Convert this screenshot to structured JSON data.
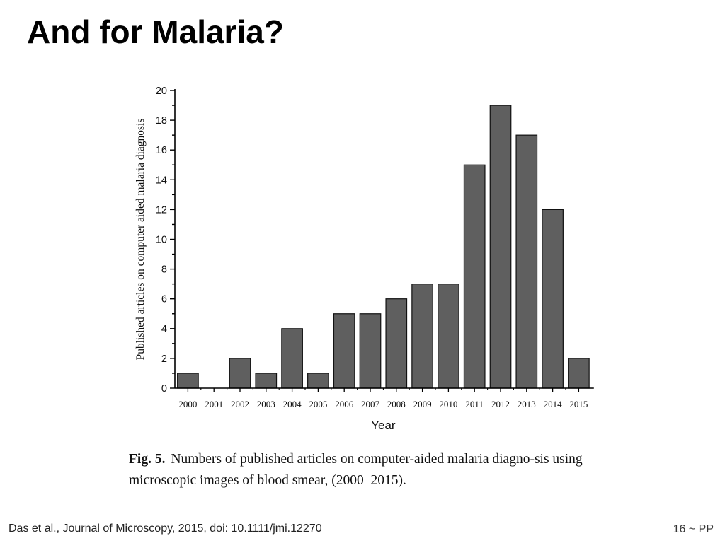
{
  "slide": {
    "title": "And for Malaria?",
    "citation": "Das et al., Journal of Microscopy, 2015, doi: 10.1111/jmi.12270",
    "page_label": "16 ~ PP"
  },
  "figure": {
    "caption_label": "Fig. 5.",
    "caption_text": "Numbers of published articles on computer-aided malaria diagno-sis using microscopic images of blood smear, (2000–2015)."
  },
  "chart_data": {
    "type": "bar",
    "categories": [
      "2000",
      "2001",
      "2002",
      "2003",
      "2004",
      "2005",
      "2006",
      "2007",
      "2008",
      "2009",
      "2010",
      "2011",
      "2012",
      "2013",
      "2014",
      "2015"
    ],
    "values": [
      1,
      0,
      2,
      1,
      4,
      1,
      5,
      5,
      6,
      7,
      7,
      15,
      19,
      17,
      12,
      2
    ],
    "xlabel": "Year",
    "ylabel": "Published articles on computer aided malaria diagnosis",
    "ylim": [
      0,
      20
    ],
    "yticks": [
      0,
      2,
      4,
      6,
      8,
      10,
      12,
      14,
      16,
      18,
      20
    ],
    "bar_color": "#5f5f5f",
    "grid": false,
    "legend": "none"
  }
}
